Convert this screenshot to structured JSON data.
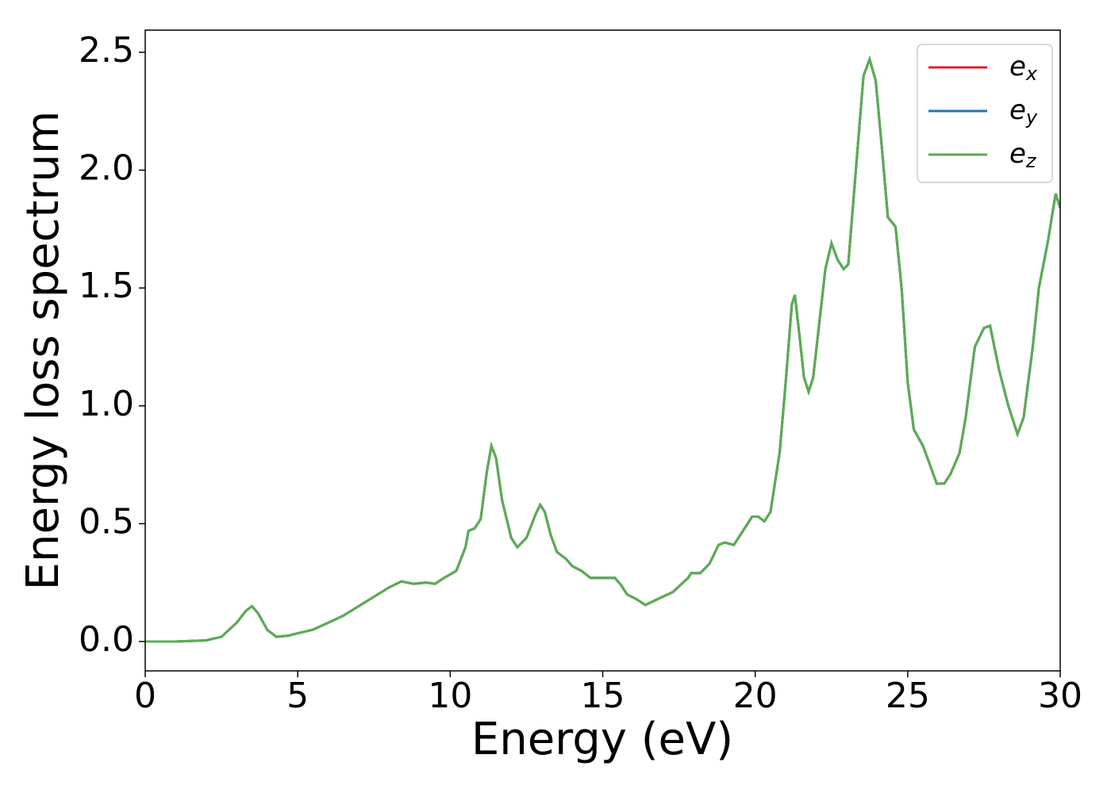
{
  "chart_data": {
    "type": "line",
    "xlabel": "Energy (eV)",
    "ylabel": "Energy loss spectrum",
    "xlim": [
      0,
      30
    ],
    "ylim": [
      -0.1245,
      2.594
    ],
    "xticks": [
      0,
      5,
      10,
      15,
      20,
      25,
      30
    ],
    "yticks": [
      {
        "value": 0,
        "label": "0.0"
      },
      0.5,
      {
        "value": 1,
        "label": "1.0"
      },
      1.5,
      {
        "value": 2,
        "label": "2.0"
      },
      2.5
    ],
    "legend": "upper right",
    "x": [
      0,
      1,
      2,
      2.5,
      3,
      3.3,
      3.5,
      3.7,
      4,
      4.3,
      4.7,
      5,
      5.5,
      6,
      6.5,
      7,
      7.5,
      8,
      8.4,
      8.8,
      9.2,
      9.5,
      9.8,
      10.2,
      10.5,
      10.6,
      10.8,
      11,
      11.2,
      11.35,
      11.5,
      11.7,
      12,
      12.2,
      12.5,
      12.8,
      12.95,
      13.1,
      13.3,
      13.5,
      13.8,
      14,
      14.3,
      14.6,
      15,
      15.4,
      15.6,
      15.8,
      16.1,
      16.4,
      16.8,
      17.3,
      17.8,
      17.9,
      18.2,
      18.5,
      18.8,
      19,
      19.3,
      19.6,
      19.9,
      20.1,
      20.3,
      20.5,
      20.8,
      21,
      21.2,
      21.3,
      21.45,
      21.6,
      21.75,
      21.9,
      22.1,
      22.3,
      22.5,
      22.7,
      22.9,
      23.05,
      23.3,
      23.55,
      23.75,
      23.95,
      24.15,
      24.35,
      24.6,
      24.8,
      25,
      25.2,
      25.5,
      25.7,
      25.95,
      26.2,
      26.4,
      26.7,
      26.9,
      27.2,
      27.5,
      27.7,
      28,
      28.3,
      28.6,
      28.8,
      29.1,
      29.3,
      29.6,
      29.85,
      30
    ],
    "series": [
      {
        "name": "ex",
        "color": "#d62728",
        "values": [
          0,
          0,
          0.005,
          0.02,
          0.08,
          0.13,
          0.15,
          0.12,
          0.05,
          0.02,
          0.025,
          0.035,
          0.05,
          0.08,
          0.11,
          0.15,
          0.19,
          0.23,
          0.255,
          0.245,
          0.25,
          0.245,
          0.27,
          0.3,
          0.4,
          0.47,
          0.48,
          0.52,
          0.72,
          0.83,
          0.78,
          0.6,
          0.44,
          0.4,
          0.44,
          0.54,
          0.58,
          0.55,
          0.45,
          0.38,
          0.35,
          0.32,
          0.3,
          0.27,
          0.27,
          0.27,
          0.24,
          0.2,
          0.18,
          0.155,
          0.18,
          0.21,
          0.27,
          0.29,
          0.29,
          0.33,
          0.41,
          0.42,
          0.41,
          0.47,
          0.53,
          0.53,
          0.51,
          0.55,
          0.8,
          1.1,
          1.43,
          1.47,
          1.3,
          1.12,
          1.06,
          1.12,
          1.35,
          1.58,
          1.69,
          1.62,
          1.58,
          1.6,
          2.0,
          2.4,
          2.47,
          2.38,
          2.1,
          1.8,
          1.76,
          1.5,
          1.1,
          0.9,
          0.83,
          0.76,
          0.67,
          0.67,
          0.71,
          0.8,
          0.95,
          1.25,
          1.33,
          1.34,
          1.15,
          1.0,
          0.88,
          0.95,
          1.25,
          1.5,
          1.7,
          1.9,
          1.84
        ]
      },
      {
        "name": "ey",
        "color": "#1f77b4",
        "values": [
          0,
          0,
          0.005,
          0.02,
          0.08,
          0.13,
          0.15,
          0.12,
          0.05,
          0.02,
          0.025,
          0.035,
          0.05,
          0.08,
          0.11,
          0.15,
          0.19,
          0.23,
          0.255,
          0.245,
          0.25,
          0.245,
          0.27,
          0.3,
          0.4,
          0.47,
          0.48,
          0.52,
          0.72,
          0.83,
          0.78,
          0.6,
          0.44,
          0.4,
          0.44,
          0.54,
          0.58,
          0.55,
          0.45,
          0.38,
          0.35,
          0.32,
          0.3,
          0.27,
          0.27,
          0.27,
          0.24,
          0.2,
          0.18,
          0.155,
          0.18,
          0.21,
          0.27,
          0.29,
          0.29,
          0.33,
          0.41,
          0.42,
          0.41,
          0.47,
          0.53,
          0.53,
          0.51,
          0.55,
          0.8,
          1.1,
          1.43,
          1.47,
          1.3,
          1.12,
          1.06,
          1.12,
          1.35,
          1.58,
          1.69,
          1.62,
          1.58,
          1.6,
          2.0,
          2.4,
          2.47,
          2.38,
          2.1,
          1.8,
          1.76,
          1.5,
          1.1,
          0.9,
          0.83,
          0.76,
          0.67,
          0.67,
          0.71,
          0.8,
          0.95,
          1.25,
          1.33,
          1.34,
          1.15,
          1.0,
          0.88,
          0.95,
          1.25,
          1.5,
          1.7,
          1.9,
          1.84
        ]
      },
      {
        "name": "ez",
        "color": "#5aad52",
        "values": [
          0,
          0,
          0.005,
          0.02,
          0.08,
          0.13,
          0.15,
          0.12,
          0.05,
          0.02,
          0.025,
          0.035,
          0.05,
          0.08,
          0.11,
          0.15,
          0.19,
          0.23,
          0.255,
          0.245,
          0.25,
          0.245,
          0.27,
          0.3,
          0.4,
          0.47,
          0.48,
          0.52,
          0.72,
          0.83,
          0.78,
          0.6,
          0.44,
          0.4,
          0.44,
          0.54,
          0.58,
          0.55,
          0.45,
          0.38,
          0.35,
          0.32,
          0.3,
          0.27,
          0.27,
          0.27,
          0.24,
          0.2,
          0.18,
          0.155,
          0.18,
          0.21,
          0.27,
          0.29,
          0.29,
          0.33,
          0.41,
          0.42,
          0.41,
          0.47,
          0.53,
          0.53,
          0.51,
          0.55,
          0.8,
          1.1,
          1.43,
          1.47,
          1.3,
          1.12,
          1.06,
          1.12,
          1.35,
          1.58,
          1.69,
          1.62,
          1.58,
          1.6,
          2.0,
          2.4,
          2.47,
          2.38,
          2.1,
          1.8,
          1.76,
          1.5,
          1.1,
          0.9,
          0.83,
          0.76,
          0.67,
          0.67,
          0.71,
          0.8,
          0.95,
          1.25,
          1.33,
          1.34,
          1.15,
          1.0,
          0.88,
          0.95,
          1.25,
          1.5,
          1.7,
          1.9,
          1.84
        ]
      }
    ]
  }
}
